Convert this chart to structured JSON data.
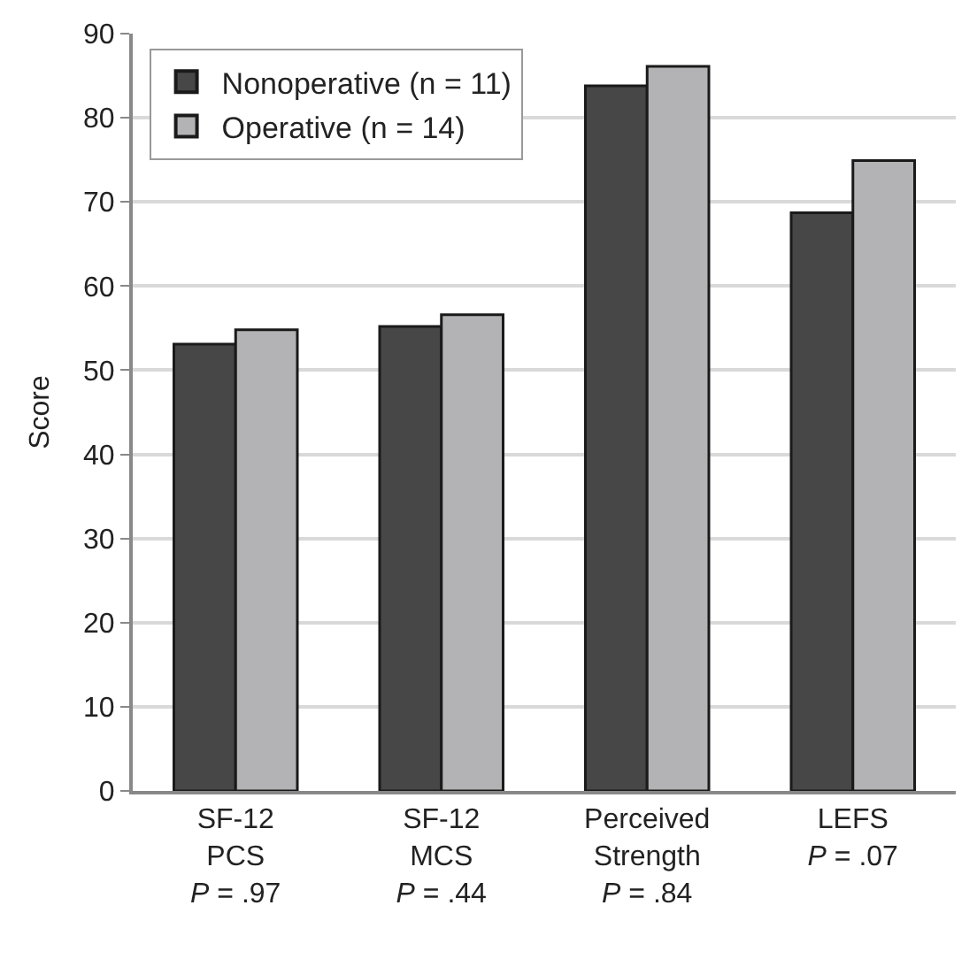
{
  "chart_data": {
    "type": "bar",
    "ylabel": "Score",
    "categories": [
      "SF-12\nPCS\nP = .97",
      "SF-12\nMCS\nP = .44",
      "Perceived\nStrength\nP = .84",
      "LEFS\nP = .07"
    ],
    "series": [
      {
        "name": "Nonoperative (n = 11)",
        "color": "#474747",
        "values": [
          53.1,
          55.2,
          83.8,
          68.7
        ]
      },
      {
        "name": "Operative (n = 14)",
        "color": "#b3b3b5",
        "values": [
          54.8,
          56.6,
          86.1,
          74.9
        ]
      }
    ],
    "ylim": [
      0,
      90
    ],
    "yticks": [
      0,
      10,
      20,
      30,
      40,
      50,
      60,
      70,
      80,
      90
    ],
    "grid": "y",
    "legend": "top left"
  }
}
